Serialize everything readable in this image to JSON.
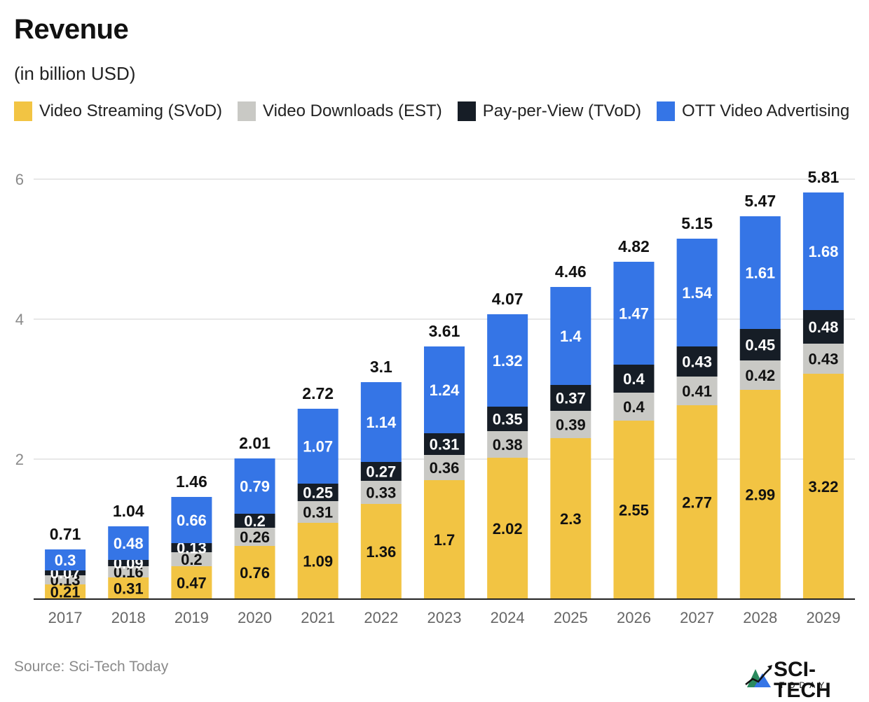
{
  "title": "Revenue",
  "subtitle": "(in billion USD)",
  "legend": [
    {
      "label": "Video Streaming (SVoD)",
      "color": "#f2c443",
      "swatch_icon": "yellow-square"
    },
    {
      "label": "Video Downloads (EST)",
      "color": "#c9c9c5",
      "swatch_icon": "gray-square"
    },
    {
      "label": "Pay-per-View (TVoD)",
      "color": "#161d26",
      "swatch_icon": "black-square"
    },
    {
      "label": "OTT Video Advertising",
      "color": "#3575e6",
      "swatch_icon": "blue-square"
    }
  ],
  "source": "Source: Sci-Tech Today",
  "logo": {
    "name": "SCI-TECH",
    "sub": "TODAY",
    "icon": "sci-tech-logo-icon"
  },
  "chart_data": {
    "type": "bar",
    "stacked": true,
    "categories": [
      "2017",
      "2018",
      "2019",
      "2020",
      "2021",
      "2022",
      "2023",
      "2024",
      "2025",
      "2026",
      "2027",
      "2028",
      "2029"
    ],
    "series": [
      {
        "name": "Video Streaming (SVoD)",
        "color": "#f2c443",
        "label_color": "#111111",
        "values": [
          0.21,
          0.31,
          0.47,
          0.76,
          1.09,
          1.36,
          1.7,
          2.02,
          2.3,
          2.55,
          2.77,
          2.99,
          3.22
        ]
      },
      {
        "name": "Video Downloads (EST)",
        "color": "#c9c9c5",
        "label_color": "#111111",
        "values": [
          0.13,
          0.16,
          0.2,
          0.26,
          0.31,
          0.33,
          0.36,
          0.38,
          0.39,
          0.4,
          0.41,
          0.42,
          0.43
        ]
      },
      {
        "name": "Pay-per-View (TVoD)",
        "color": "#161d26",
        "label_color": "#ffffff",
        "values": [
          0.07,
          0.09,
          0.13,
          0.2,
          0.25,
          0.27,
          0.31,
          0.35,
          0.37,
          0.4,
          0.43,
          0.45,
          0.48
        ]
      },
      {
        "name": "OTT Video Advertising",
        "color": "#3575e6",
        "label_color": "#ffffff",
        "values": [
          0.3,
          0.48,
          0.66,
          0.79,
          1.07,
          1.14,
          1.24,
          1.32,
          1.4,
          1.47,
          1.54,
          1.61,
          1.68
        ]
      }
    ],
    "totals": [
      0.71,
      1.04,
      1.46,
      2.01,
      2.72,
      3.1,
      3.61,
      4.07,
      4.46,
      4.82,
      5.15,
      5.47,
      5.81
    ],
    "ylim": [
      0,
      6
    ],
    "yticks": [
      2,
      4,
      6
    ],
    "grid": true,
    "legend_position": "top-left"
  }
}
